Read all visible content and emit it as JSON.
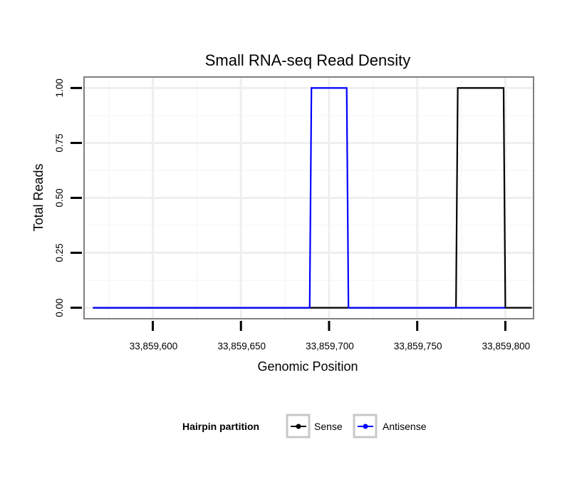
{
  "chart_data": {
    "type": "line",
    "title": "Small RNA-seq Read Density",
    "xlabel": "Genomic Position",
    "ylabel": "Total Reads",
    "xlim": [
      33859561,
      33859816
    ],
    "ylim": [
      -0.05,
      1.05
    ],
    "x_ticks": [
      33859600,
      33859650,
      33859700,
      33859750,
      33859800
    ],
    "x_tick_labels": [
      "33,859,600",
      "33,859,650",
      "33,859,700",
      "33,859,750",
      "33,859,800"
    ],
    "y_ticks": [
      0,
      0.25,
      0.5,
      0.75,
      1.0
    ],
    "y_tick_labels": [
      "0.00",
      "0.25",
      "0.50",
      "0.75",
      "1.00"
    ],
    "grid": true,
    "legend": {
      "title": "Hairpin partition",
      "position": "bottom"
    },
    "series": [
      {
        "name": "Sense",
        "color": "#000000",
        "x": [
          33859566,
          33859772,
          33859773,
          33859799,
          33859800,
          33859815
        ],
        "y": [
          0,
          0,
          1,
          1,
          0,
          0
        ]
      },
      {
        "name": "Antisense",
        "color": "#0000ff",
        "x": [
          33859566,
          33859689,
          33859690,
          33859710,
          33859711,
          33859800
        ],
        "y": [
          0,
          0,
          1,
          1,
          0,
          0
        ]
      }
    ]
  }
}
